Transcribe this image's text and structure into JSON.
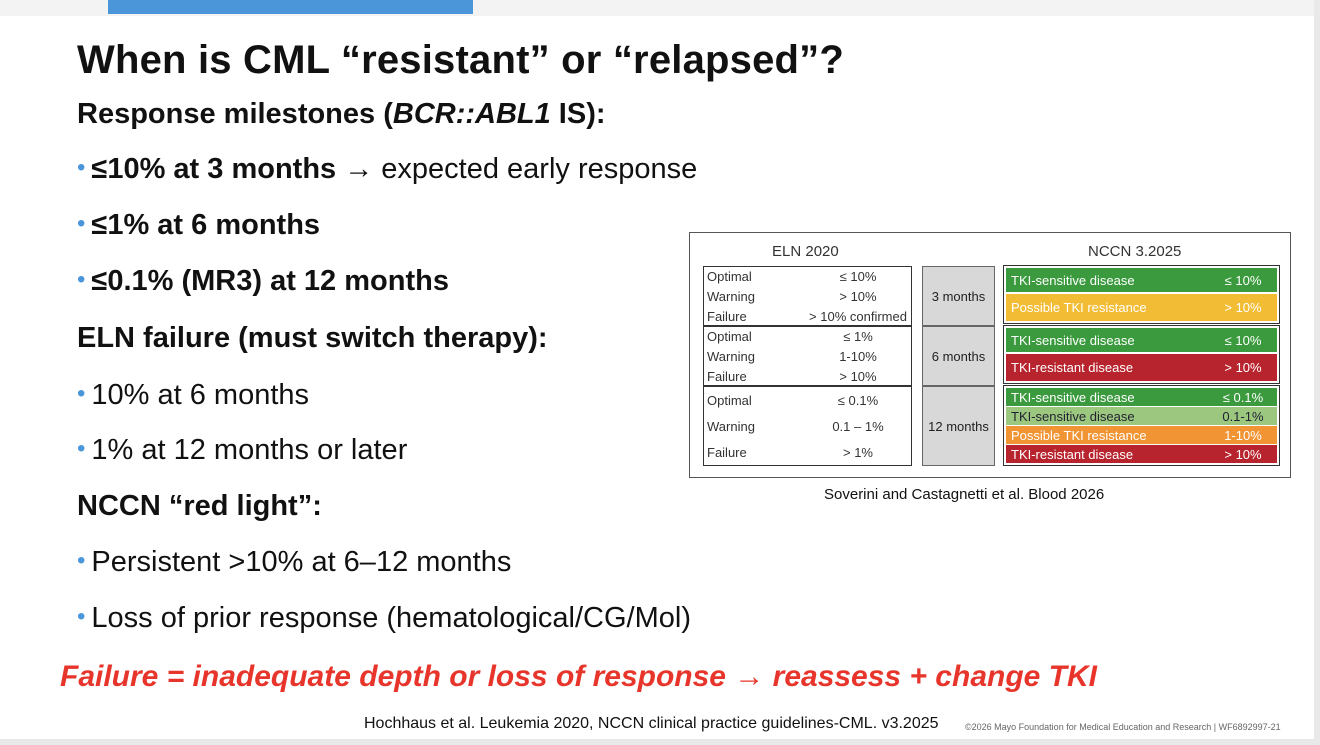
{
  "slide": {
    "title": "When is CML “resistant” or “relapsed”?",
    "milestones_heading_pre": "Response milestones (",
    "milestones_heading_gene": "BCR::ABL1",
    "milestones_heading_post": " IS):",
    "milestone_1_bold": "≤10% at 3 months",
    "milestone_1_rest": " → expected early response",
    "milestone_2": "≤1% at 6 months",
    "milestone_3": "≤0.1% (MR3) at 12 months",
    "eln_heading": "ELN failure (must switch therapy):",
    "eln_1": "10% at 6 months",
    "eln_2": "1% at 12 months or later",
    "nccn_heading": "NCCN “red light”:",
    "nccn_1": "Persistent >10% at 6–12 months",
    "nccn_2": "Loss of prior response (hematological/CG/Mol)",
    "failure_summary": "Failure = inadequate depth or loss of response → reassess + change TKI",
    "reference": "Hochhaus et al. Leukemia 2020, NCCN clinical practice guidelines-CML. v3.2025",
    "copyright": "©2026 Mayo Foundation for Medical Education and Research  |  WF6892997-21",
    "bullet_glyph": "•"
  },
  "figure": {
    "eln_header": "ELN 2020",
    "nccn_header": "NCCN 3.2025",
    "caption": "Soverini and Castagnetti et al. Blood 2026",
    "eln_3m": [
      {
        "label": "Optimal",
        "value": "≤ 10%"
      },
      {
        "label": "Warning",
        "value": "> 10%"
      },
      {
        "label": "Failure",
        "value": "> 10% confirmed"
      }
    ],
    "eln_6m": [
      {
        "label": "Optimal",
        "value": "≤ 1%"
      },
      {
        "label": "Warning",
        "value": "1-10%"
      },
      {
        "label": "Failure",
        "value": "> 10%"
      }
    ],
    "eln_12m": [
      {
        "label": "Optimal",
        "value": "≤ 0.1%"
      },
      {
        "label": "Warning",
        "value": "0.1 – 1%"
      },
      {
        "label": "Failure",
        "value": "> 1%"
      }
    ],
    "times": [
      "3 months",
      "6 months",
      "12 months"
    ],
    "nccn_3m": [
      {
        "label": "TKI-sensitive disease",
        "value": "≤ 10%",
        "color": "#3a9a3d"
      },
      {
        "label": "Possible TKI resistance",
        "value": "> 10%",
        "color": "#f2bc35"
      }
    ],
    "nccn_6m": [
      {
        "label": "TKI-sensitive disease",
        "value": "≤ 10%",
        "color": "#3a9a3d"
      },
      {
        "label": "TKI-resistant disease",
        "value": "> 10%",
        "color": "#b8242d"
      }
    ],
    "nccn_12m": [
      {
        "label": "TKI-sensitive disease",
        "value": "≤ 0.1%",
        "color": "#3a9a3d"
      },
      {
        "label": "TKI-sensitive disease",
        "value": "0.1-1%",
        "color": "#9cc77e"
      },
      {
        "label": "Possible TKI resistance",
        "value": "1-10%",
        "color": "#f19433"
      },
      {
        "label": "TKI-resistant disease",
        "value": "> 10%",
        "color": "#b8242d"
      }
    ]
  }
}
